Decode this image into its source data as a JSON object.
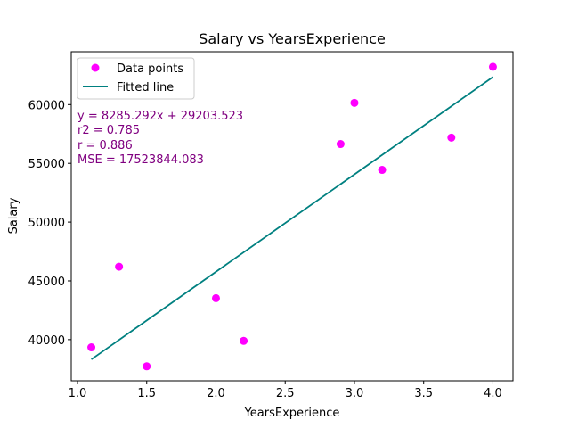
{
  "chart_data": {
    "type": "scatter",
    "title": "Salary vs YearsExperience",
    "xlabel": "YearsExperience",
    "ylabel": "Salary",
    "xlim": [
      0.955,
      4.145
    ],
    "ylim": [
      36500,
      64500
    ],
    "x_ticks": [
      1.0,
      1.5,
      2.0,
      2.5,
      3.0,
      3.5,
      4.0
    ],
    "x_tick_labels": [
      "1.0",
      "1.5",
      "2.0",
      "2.5",
      "3.0",
      "3.5",
      "4.0"
    ],
    "y_ticks": [
      40000,
      45000,
      50000,
      55000,
      60000
    ],
    "y_tick_labels": [
      "40000",
      "45000",
      "50000",
      "55000",
      "60000"
    ],
    "grid": false,
    "legend_position": "top-left",
    "series": [
      {
        "name": "Data points",
        "kind": "scatter",
        "color": "#ff00ff",
        "points": [
          {
            "x": 1.1,
            "y": 39343
          },
          {
            "x": 1.3,
            "y": 46205
          },
          {
            "x": 1.5,
            "y": 37731
          },
          {
            "x": 2.0,
            "y": 43525
          },
          {
            "x": 2.2,
            "y": 39891
          },
          {
            "x": 2.9,
            "y": 56642
          },
          {
            "x": 3.0,
            "y": 60150
          },
          {
            "x": 3.2,
            "y": 54445
          },
          {
            "x": 3.7,
            "y": 57189
          },
          {
            "x": 4.0,
            "y": 63218
          }
        ]
      },
      {
        "name": "Fitted line",
        "kind": "line",
        "color": "#008080",
        "slope": 8285.292,
        "intercept": 29203.523,
        "x_range": [
          1.1,
          4.0
        ]
      }
    ],
    "annotations": {
      "color": "#800080",
      "lines": [
        "y = 8285.292x + 29203.523",
        "r2 = 0.785",
        "r = 0.886",
        "MSE = 17523844.083"
      ]
    }
  }
}
